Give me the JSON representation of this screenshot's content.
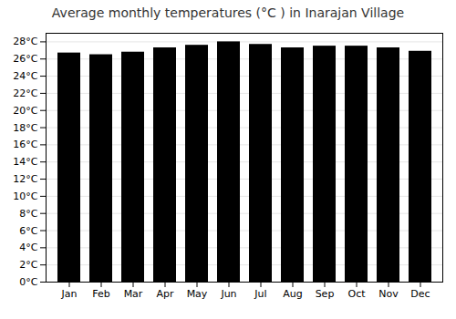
{
  "chart_data": {
    "type": "bar",
    "title": "Average monthly temperatures (°C ) in Inarajan Village",
    "categories": [
      "Jan",
      "Feb",
      "Mar",
      "Apr",
      "May",
      "Jun",
      "Jul",
      "Aug",
      "Sep",
      "Oct",
      "Nov",
      "Dec"
    ],
    "values": [
      26.7,
      26.5,
      26.8,
      27.3,
      27.6,
      28.0,
      27.7,
      27.3,
      27.5,
      27.5,
      27.3,
      26.9
    ],
    "ylim": [
      0,
      29
    ],
    "yticks": [
      {
        "value": 0,
        "label": "0°C"
      },
      {
        "value": 2,
        "label": "2°C"
      },
      {
        "value": 4,
        "label": "4°C"
      },
      {
        "value": 6,
        "label": "6°C"
      },
      {
        "value": 8,
        "label": "8°C"
      },
      {
        "value": 10,
        "label": "10°C"
      },
      {
        "value": 12,
        "label": "12°C"
      },
      {
        "value": 14,
        "label": "14°C"
      },
      {
        "value": 16,
        "label": "16°C"
      },
      {
        "value": 18,
        "label": "18°C"
      },
      {
        "value": 20,
        "label": "20°C"
      },
      {
        "value": 22,
        "label": "22°C"
      },
      {
        "value": 24,
        "label": "24°C"
      },
      {
        "value": 26,
        "label": "26°C"
      },
      {
        "value": 28,
        "label": "28°C"
      }
    ],
    "grid": true
  }
}
